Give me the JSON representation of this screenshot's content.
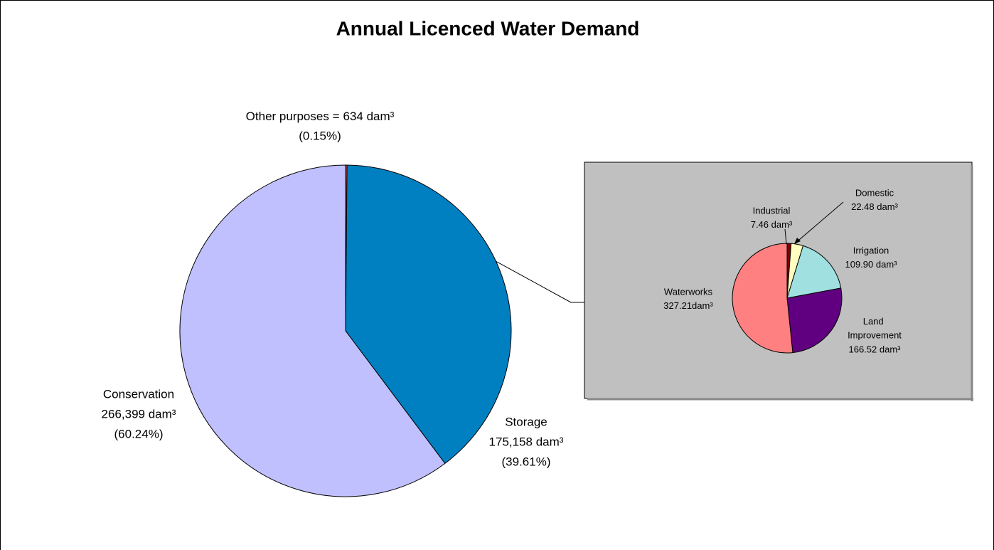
{
  "chart_data": [
    {
      "type": "pie",
      "title": "Annual Licenced Water Demand",
      "categories": [
        "Other purposes =",
        "Storage",
        "Conservation"
      ],
      "values": [
        634,
        175158,
        266399
      ],
      "value_labels": [
        "634 dam³",
        "175,158 dam³",
        "266,399 dam³"
      ],
      "percents": [
        0.15,
        39.61,
        60.24
      ],
      "percent_labels": [
        "(0.15%)",
        "(39.61%)",
        "(60.24%)"
      ],
      "colors": [
        "#d9534f",
        "#0080c0",
        "#c0c0ff"
      ]
    },
    {
      "type": "pie",
      "categories": [
        "Industrial",
        "Domestic",
        "Irrigation",
        "Land Improvement",
        "Waterworks"
      ],
      "values": [
        7.46,
        22.48,
        109.9,
        166.52,
        327.21
      ],
      "value_labels": [
        "7.46 dam³",
        "22.48 dam³",
        "109.90 dam³",
        "166.52 dam³",
        "327.21dam³"
      ],
      "colors": [
        "#800000",
        "#ffffc0",
        "#a0e0e0",
        "#600080",
        "#ff8080"
      ]
    }
  ]
}
